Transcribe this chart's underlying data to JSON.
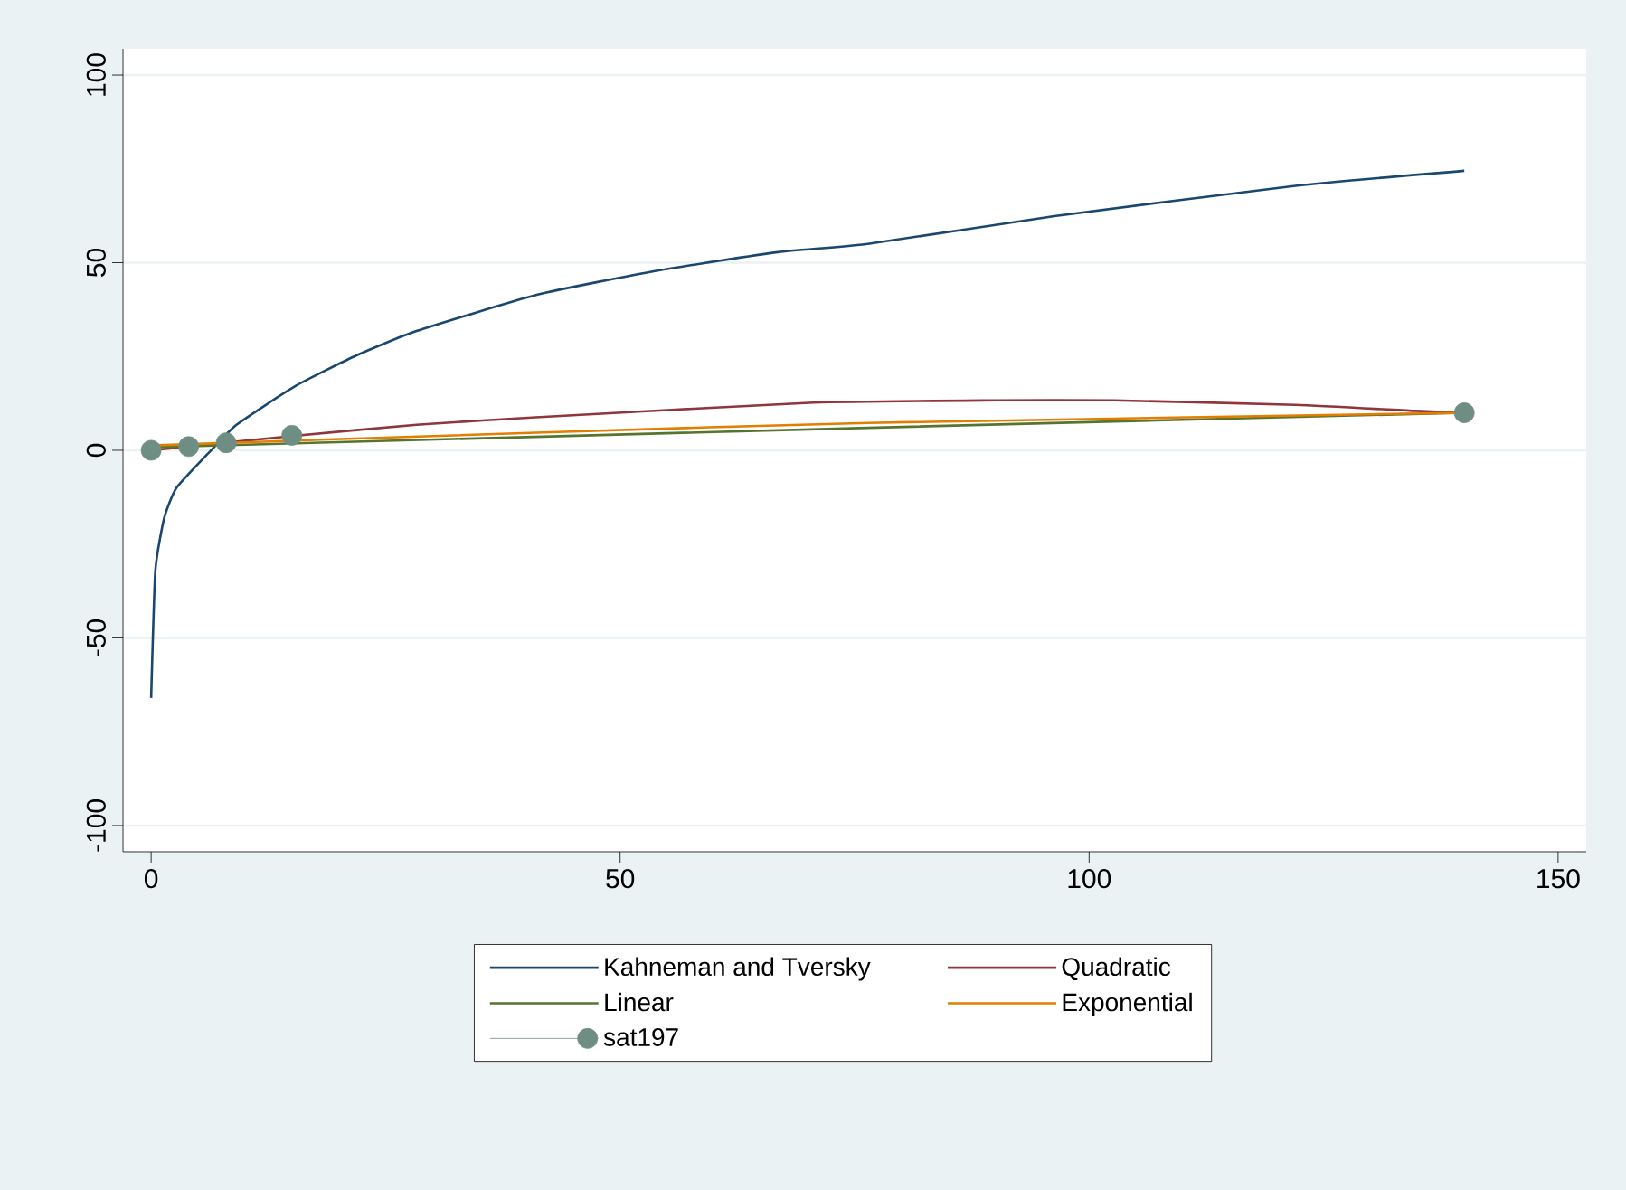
{
  "chart_data": {
    "type": "line",
    "series": [
      {
        "name": "Kahneman and Tversky",
        "color": "#1a476f",
        "x": [
          0,
          0.45,
          1.4,
          2.7,
          6.2,
          9.1,
          15.5,
          21.9,
          28.3,
          41.2,
          54,
          66.8,
          76.4,
          96.3,
          122,
          140
        ],
        "values": [
          -66,
          -32,
          -18,
          -10,
          -0.5,
          6.8,
          17.3,
          25.3,
          31.8,
          41.5,
          47.9,
          52.8,
          55,
          62.4,
          70.5,
          74.5
        ]
      },
      {
        "name": "Quadratic",
        "color": "#90353b",
        "x": [
          0,
          15,
          28.3,
          41,
          70.6,
          90,
          102.7,
          122,
          134.8,
          140
        ],
        "values": [
          0,
          3.8,
          6.8,
          8.8,
          12.7,
          13.3,
          13.3,
          12.1,
          10.5,
          10
        ]
      },
      {
        "name": "Linear",
        "color": "#55752f",
        "x": [
          0,
          76.4,
          140
        ],
        "values": [
          0.8,
          6,
          10
        ]
      },
      {
        "name": "Exponential",
        "color": "#e37e00",
        "x": [
          0,
          41,
          76.4,
          140
        ],
        "values": [
          1.3,
          4.7,
          7.3,
          10
        ]
      },
      {
        "name": "sat197",
        "type": "scatter",
        "marker": "circle",
        "color": "#6e8e84",
        "x": [
          0,
          4,
          8,
          15,
          140
        ],
        "values": [
          0,
          1,
          2,
          4,
          10
        ]
      }
    ],
    "xlim": [
      -3,
      153
    ],
    "xticks": [
      0,
      50,
      100,
      150
    ],
    "ylim": [
      -107,
      107
    ],
    "yticks": [
      -100,
      -50,
      0,
      50,
      100
    ],
    "grid": "y",
    "legend": "bottom"
  }
}
